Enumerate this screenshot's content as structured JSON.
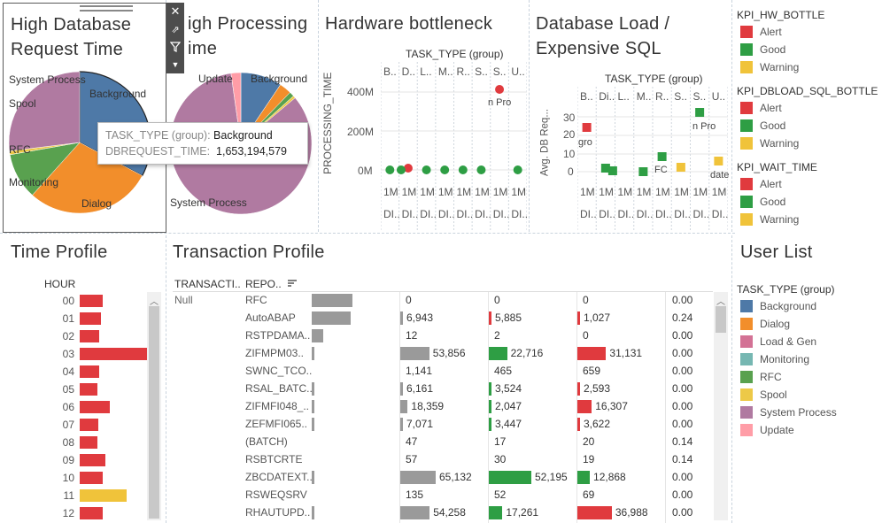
{
  "panels": {
    "high_db": {
      "title_line1": "High Database",
      "title_line2": "Request Time"
    },
    "high_proc": {
      "title_line1": "igh Processing",
      "title_line2": "ime"
    },
    "hw": {
      "title": "Hardware bottleneck",
      "header": "TASK_TYPE (group)",
      "ylabel": "PROCESSING_TIME",
      "yticks": [
        "400M",
        "200M",
        "0M"
      ]
    },
    "dbload": {
      "title_line1": "Database Load /",
      "title_line2": "Expensive SQL",
      "header": "TASK_TYPE (group)",
      "ylabel": "Avg. DB Req...",
      "yticks": [
        "30",
        "20",
        "10",
        "0"
      ]
    },
    "time_profile": {
      "title": "Time Profile",
      "header": "HOUR"
    },
    "transaction_profile": {
      "title": "Transaction Profile"
    },
    "user_list": {
      "title": "User List"
    }
  },
  "pie1_labels": [
    "System Process",
    "Background",
    "Spool",
    "RFC",
    "Monitoring",
    "Dialog"
  ],
  "pie2_labels": [
    "Update",
    "Background",
    "System Process"
  ],
  "tooltip": {
    "k1": "TASK_TYPE (group):",
    "v1": "Background",
    "k2": "DBREQUEST_TIME:",
    "v2": "1,653,194,579"
  },
  "hw_cols": [
    "B..",
    "D..",
    "L..",
    "M..",
    "R..",
    "S..",
    "S..",
    "U.."
  ],
  "hw_bottom1": [
    "1M",
    "1M",
    "1M",
    "1M",
    "1M",
    "1M",
    "1M",
    "1M"
  ],
  "hw_bottom2": [
    "DI..",
    "DI..",
    "DI..",
    "DI..",
    "DI..",
    "DI..",
    "DI..",
    "DI.."
  ],
  "hw_annot": "n Pro",
  "db_cols": [
    "B..",
    "Di..",
    "L..",
    "M..",
    "R..",
    "S..",
    "S..",
    "U.."
  ],
  "db_bottom1": [
    "1M",
    "1M",
    "1M",
    "1M",
    "1M",
    "1M",
    "1M",
    "1M"
  ],
  "db_bottom2": [
    "DI..",
    "DI..",
    "DI..",
    "DI..",
    "DI..",
    "DI..",
    "DI..",
    "DI.."
  ],
  "db_annot": {
    "a": "gro",
    "b": "FC",
    "c": "n Pro",
    "d": "date"
  },
  "legends": {
    "hw_bottle": {
      "title": "KPI_HW_BOTTLE",
      "items": [
        "Alert",
        "Good",
        "Warning"
      ]
    },
    "dbload_sql": {
      "title": "KPI_DBLOAD_SQL_BOTTLE",
      "items": [
        "Alert",
        "Good",
        "Warning"
      ]
    },
    "wait_time": {
      "title": "KPI_WAIT_TIME",
      "items": [
        "Alert",
        "Good",
        "Warning"
      ]
    },
    "task_type": {
      "title": "TASK_TYPE (group)",
      "items": [
        "Background",
        "Dialog",
        "Load & Gen",
        "Monitoring",
        "RFC",
        "Spool",
        "System Process",
        "Update"
      ]
    }
  },
  "colors": {
    "alert": "#e03a3e",
    "good": "#2e9e44",
    "warning": "#f0c33a",
    "background": "#4e79a7",
    "dialog": "#f28e2b",
    "loadgen": "#d37295",
    "monitoring": "#76b7b2",
    "rfc": "#59a14f",
    "spool": "#edc948",
    "system_process": "#b07aa1",
    "update": "#ff9da7",
    "gray_bar": "#9a9a9a"
  },
  "time_profile_rows": [
    {
      "hour": "00",
      "value": 26,
      "kpi": "alert"
    },
    {
      "hour": "01",
      "value": 24,
      "kpi": "alert"
    },
    {
      "hour": "02",
      "value": 22,
      "kpi": "alert"
    },
    {
      "hour": "03",
      "value": 76,
      "kpi": "alert"
    },
    {
      "hour": "04",
      "value": 22,
      "kpi": "alert"
    },
    {
      "hour": "05",
      "value": 20,
      "kpi": "alert"
    },
    {
      "hour": "06",
      "value": 34,
      "kpi": "alert"
    },
    {
      "hour": "07",
      "value": 21,
      "kpi": "alert"
    },
    {
      "hour": "08",
      "value": 20,
      "kpi": "alert"
    },
    {
      "hour": "09",
      "value": 29,
      "kpi": "alert"
    },
    {
      "hour": "10",
      "value": 26,
      "kpi": "alert"
    },
    {
      "hour": "11",
      "value": 53,
      "kpi": "warning"
    },
    {
      "hour": "12",
      "value": 26,
      "kpi": "alert"
    }
  ],
  "tp_headers": {
    "col1": "TRANSACTI..",
    "col2": "REPO.."
  },
  "tp_null": "Null",
  "tp_rows": [
    {
      "report": "RFC",
      "v1": "0",
      "v2": "0",
      "v3": "0",
      "v4": "0.00",
      "w0": 0.7,
      "w1": 0,
      "w2": 0,
      "w3": 0,
      "c2": "good",
      "c3": "alert"
    },
    {
      "report": "AutoABAP",
      "v1": "6,943",
      "v2": "5,885",
      "v3": "1,027",
      "v4": "0.24",
      "w0": 0.66,
      "w1": 0.06,
      "w2": 0.05,
      "w3": 0.01,
      "c2": "alert",
      "c3": "alert"
    },
    {
      "report": "RSTPDAMA..",
      "v1": "12",
      "v2": "2",
      "v3": "0",
      "v4": "0.00",
      "w0": 0.2,
      "w1": 0,
      "w2": 0,
      "w3": 0,
      "c2": "good",
      "c3": "alert"
    },
    {
      "report": "ZIFMPM03..",
      "v1": "53,856",
      "v2": "22,716",
      "v3": "31,131",
      "v4": "0.00",
      "w0": 0.05,
      "w1": 0.82,
      "w2": 0.43,
      "w3": 0.6,
      "c2": "good",
      "c3": "alert"
    },
    {
      "report": "SWNC_TCO..",
      "v1": "1,141",
      "v2": "465",
      "v3": "659",
      "v4": "0.00",
      "w0": 0,
      "w1": 0,
      "w2": 0,
      "w3": 0,
      "c2": "good",
      "c3": "alert"
    },
    {
      "report": "RSAL_BATC..",
      "v1": "6,161",
      "v2": "3,524",
      "v3": "2,593",
      "v4": "0.00",
      "w0": 0.02,
      "w1": 0.06,
      "w2": 0.04,
      "w3": 0.04,
      "c2": "good",
      "c3": "alert"
    },
    {
      "report": "ZIFMFI048_..",
      "v1": "18,359",
      "v2": "2,047",
      "v3": "16,307",
      "v4": "0.00",
      "w0": 0.02,
      "w1": 0.21,
      "w2": 0.03,
      "w3": 0.3,
      "c2": "good",
      "c3": "alert"
    },
    {
      "report": "ZEFMFI065..",
      "v1": "7,071",
      "v2": "3,447",
      "v3": "3,622",
      "v4": "0.00",
      "w0": 0.03,
      "w1": 0.06,
      "w2": 0.04,
      "w3": 0.04,
      "c2": "good",
      "c3": "alert"
    },
    {
      "report": "(BATCH)",
      "v1": "47",
      "v2": "17",
      "v3": "20",
      "v4": "0.14",
      "w0": 0,
      "w1": 0,
      "w2": 0,
      "w3": 0,
      "c2": "good",
      "c3": "alert"
    },
    {
      "report": "RSBTCRTE",
      "v1": "57",
      "v2": "30",
      "v3": "19",
      "v4": "0.14",
      "w0": 0,
      "w1": 0,
      "w2": 0,
      "w3": 0,
      "c2": "good",
      "c3": "alert"
    },
    {
      "report": "ZBCDATEXT..",
      "v1": "65,132",
      "v2": "52,195",
      "v3": "12,868",
      "v4": "0.00",
      "w0": 0.02,
      "w1": 1.0,
      "w2": 1.0,
      "w3": 0.26,
      "c2": "good",
      "c3": "good"
    },
    {
      "report": "RSWEQSRV",
      "v1": "135",
      "v2": "52",
      "v3": "69",
      "v4": "0.00",
      "w0": 0,
      "w1": 0,
      "w2": 0,
      "w3": 0,
      "c2": "good",
      "c3": "alert"
    },
    {
      "report": "RHAUTUPD..",
      "v1": "54,258",
      "v2": "17,261",
      "v3": "36,988",
      "v4": "0.00",
      "w0": 0.02,
      "w1": 0.83,
      "w2": 0.32,
      "w3": 0.72,
      "c2": "good",
      "c3": "alert"
    }
  ]
}
